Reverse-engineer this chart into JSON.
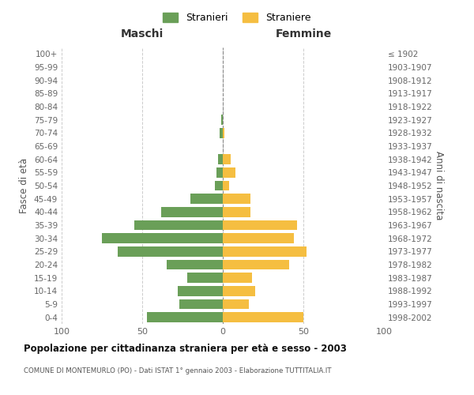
{
  "age_groups": [
    "0-4",
    "5-9",
    "10-14",
    "15-19",
    "20-24",
    "25-29",
    "30-34",
    "35-39",
    "40-44",
    "45-49",
    "50-54",
    "55-59",
    "60-64",
    "65-69",
    "70-74",
    "75-79",
    "80-84",
    "85-89",
    "90-94",
    "95-99",
    "100+"
  ],
  "birth_years": [
    "1998-2002",
    "1993-1997",
    "1988-1992",
    "1983-1987",
    "1978-1982",
    "1973-1977",
    "1968-1972",
    "1963-1967",
    "1958-1962",
    "1953-1957",
    "1948-1952",
    "1943-1947",
    "1938-1942",
    "1933-1937",
    "1928-1932",
    "1923-1927",
    "1918-1922",
    "1913-1917",
    "1908-1912",
    "1903-1907",
    "≤ 1902"
  ],
  "maschi": [
    47,
    27,
    28,
    22,
    35,
    65,
    75,
    55,
    38,
    20,
    5,
    4,
    3,
    0,
    2,
    1,
    0,
    0,
    0,
    0,
    0
  ],
  "femmine": [
    50,
    16,
    20,
    18,
    41,
    52,
    44,
    46,
    17,
    17,
    4,
    8,
    5,
    0,
    1,
    0,
    0,
    0,
    0,
    0,
    0
  ],
  "maschi_color": "#6a9f58",
  "femmine_color": "#f5be41",
  "title": "Popolazione per cittadinanza straniera per età e sesso - 2003",
  "subtitle": "COMUNE DI MONTEMURLO (PO) - Dati ISTAT 1° gennaio 2003 - Elaborazione TUTTITALIA.IT",
  "xlabel_left": "Maschi",
  "xlabel_right": "Femmine",
  "ylabel_left": "Fasce di età",
  "ylabel_right": "Anni di nascita",
  "legend_stranieri": "Stranieri",
  "legend_straniere": "Straniere",
  "xlim": 100,
  "background_color": "#ffffff",
  "grid_color": "#cccccc"
}
